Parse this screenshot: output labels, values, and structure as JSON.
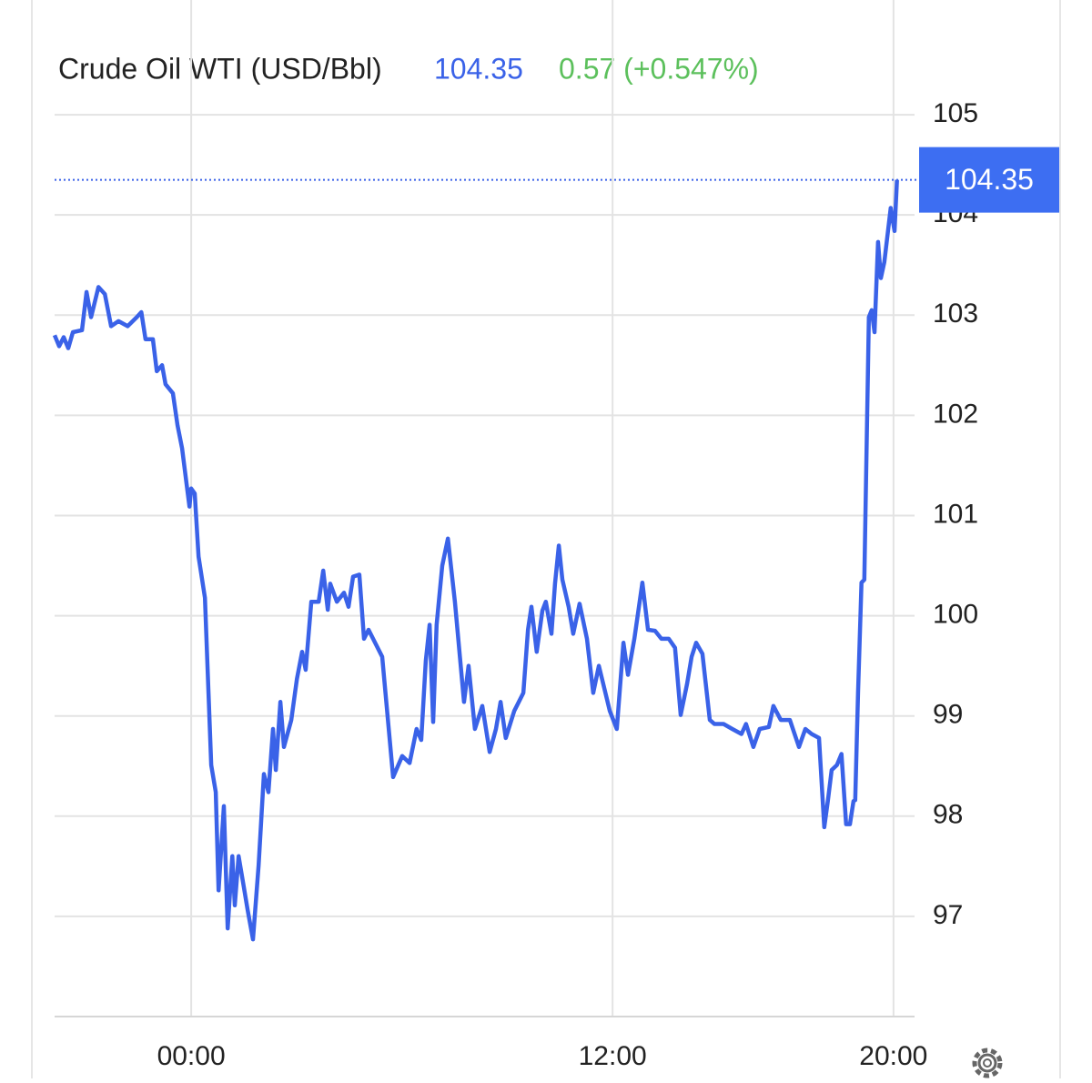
{
  "chart_data": {
    "type": "line",
    "title": "Crude Oil WTI (USD/Bbl)",
    "last_value": 104.35,
    "change": "0.57 (+0.547%)",
    "color": "#3a62e8",
    "grid": true,
    "xlim": [
      -3.89,
      20.6
    ],
    "ylim": [
      96,
      105.6
    ],
    "xticks": [
      {
        "value": 0,
        "label": "00:00"
      },
      {
        "value": 12,
        "label": "12:00"
      },
      {
        "value": 20,
        "label": "20:00"
      }
    ],
    "yticks": [
      97,
      98,
      99,
      100,
      101,
      102,
      103,
      104,
      105
    ],
    "x": [
      -3.89,
      -3.76,
      -3.63,
      -3.5,
      -3.37,
      -3.11,
      -2.98,
      -2.85,
      -2.64,
      -2.46,
      -2.28,
      -2.07,
      -1.81,
      -1.55,
      -1.42,
      -1.3,
      -1.09,
      -0.98,
      -0.83,
      -0.73,
      -0.52,
      -0.39,
      -0.26,
      -0.13,
      -0.05,
      0,
      0.1,
      0.21,
      0.39,
      0.57,
      0.7,
      0.78,
      0.93,
      1.04,
      1.17,
      1.24,
      1.35,
      1.5,
      1.61,
      1.76,
      1.92,
      2.07,
      2.2,
      2.33,
      2.41,
      2.54,
      2.64,
      2.85,
      3.01,
      3.16,
      3.26,
      3.42,
      3.63,
      3.76,
      3.89,
      3.96,
      4.15,
      4.35,
      4.48,
      4.61,
      4.79,
      4.92,
      5.05,
      5.18,
      5.44,
      5.75,
      6.01,
      6.22,
      6.42,
      6.55,
      6.68,
      6.79,
      6.89,
      6.99,
      7.15,
      7.31,
      7.51,
      7.77,
      7.9,
      8.08,
      8.29,
      8.5,
      8.68,
      8.81,
      8.96,
      9.2,
      9.33,
      9.46,
      9.59,
      9.69,
      9.84,
      10.0,
      10.1,
      10.26,
      10.36,
      10.47,
      10.57,
      10.75,
      10.88,
      11.06,
      11.27,
      11.45,
      11.61,
      11.92,
      12.12,
      12.31,
      12.44,
      12.62,
      12.85,
      13.01,
      13.21,
      13.39,
      13.6,
      13.78,
      13.94,
      14.12,
      14.25,
      14.38,
      14.56,
      14.77,
      14.9,
      15.16,
      15.41,
      15.67,
      15.8,
      16.01,
      16.19,
      16.45,
      16.58,
      16.79,
      17.05,
      17.31,
      17.49,
      17.67,
      17.88,
      18.03,
      18.13,
      18.24,
      18.39,
      18.52,
      18.65,
      18.76,
      18.86,
      18.91,
      18.99,
      19.09,
      19.17,
      19.3,
      19.38,
      19.46,
      19.56,
      19.64,
      19.74,
      19.92,
      20.03,
      20.1
    ],
    "values": [
      102.8,
      102.69,
      102.78,
      102.67,
      102.83,
      102.85,
      103.23,
      102.98,
      103.28,
      103.21,
      102.89,
      102.94,
      102.89,
      102.98,
      103.03,
      102.76,
      102.76,
      102.44,
      102.5,
      102.31,
      102.22,
      101.9,
      101.67,
      101.31,
      101.09,
      101.27,
      101.22,
      100.59,
      100.18,
      98.51,
      98.24,
      97.26,
      98.1,
      96.88,
      97.6,
      97.11,
      97.6,
      97.29,
      97.06,
      96.77,
      97.51,
      98.42,
      98.24,
      98.87,
      98.46,
      99.14,
      98.69,
      98.96,
      99.37,
      99.64,
      99.46,
      100.14,
      100.14,
      100.45,
      100.06,
      100.32,
      100.14,
      100.23,
      100.09,
      100.39,
      100.41,
      99.77,
      99.86,
      99.77,
      99.59,
      98.39,
      98.6,
      98.53,
      98.87,
      98.76,
      99.55,
      99.91,
      98.94,
      99.91,
      100.5,
      100.77,
      100.14,
      99.14,
      99.5,
      98.87,
      99.1,
      98.64,
      98.87,
      99.14,
      98.78,
      99.05,
      99.14,
      99.23,
      99.86,
      100.09,
      99.64,
      100.05,
      100.14,
      99.82,
      100.32,
      100.7,
      100.36,
      100.09,
      99.82,
      100.12,
      99.77,
      99.23,
      99.5,
      99.05,
      98.87,
      99.73,
      99.41,
      99.77,
      100.33,
      99.86,
      99.85,
      99.77,
      99.77,
      99.68,
      99.01,
      99.32,
      99.59,
      99.73,
      99.62,
      98.96,
      98.92,
      98.92,
      98.87,
      98.82,
      98.92,
      98.69,
      98.87,
      98.89,
      99.1,
      98.96,
      98.96,
      98.69,
      98.87,
      98.82,
      98.78,
      97.89,
      98.15,
      98.46,
      98.51,
      98.62,
      97.92,
      97.92,
      98.15,
      98.16,
      99.23,
      100.33,
      100.36,
      102.98,
      103.05,
      102.83,
      103.73,
      103.37,
      103.53,
      104.07,
      103.84,
      104.35
    ]
  }
}
